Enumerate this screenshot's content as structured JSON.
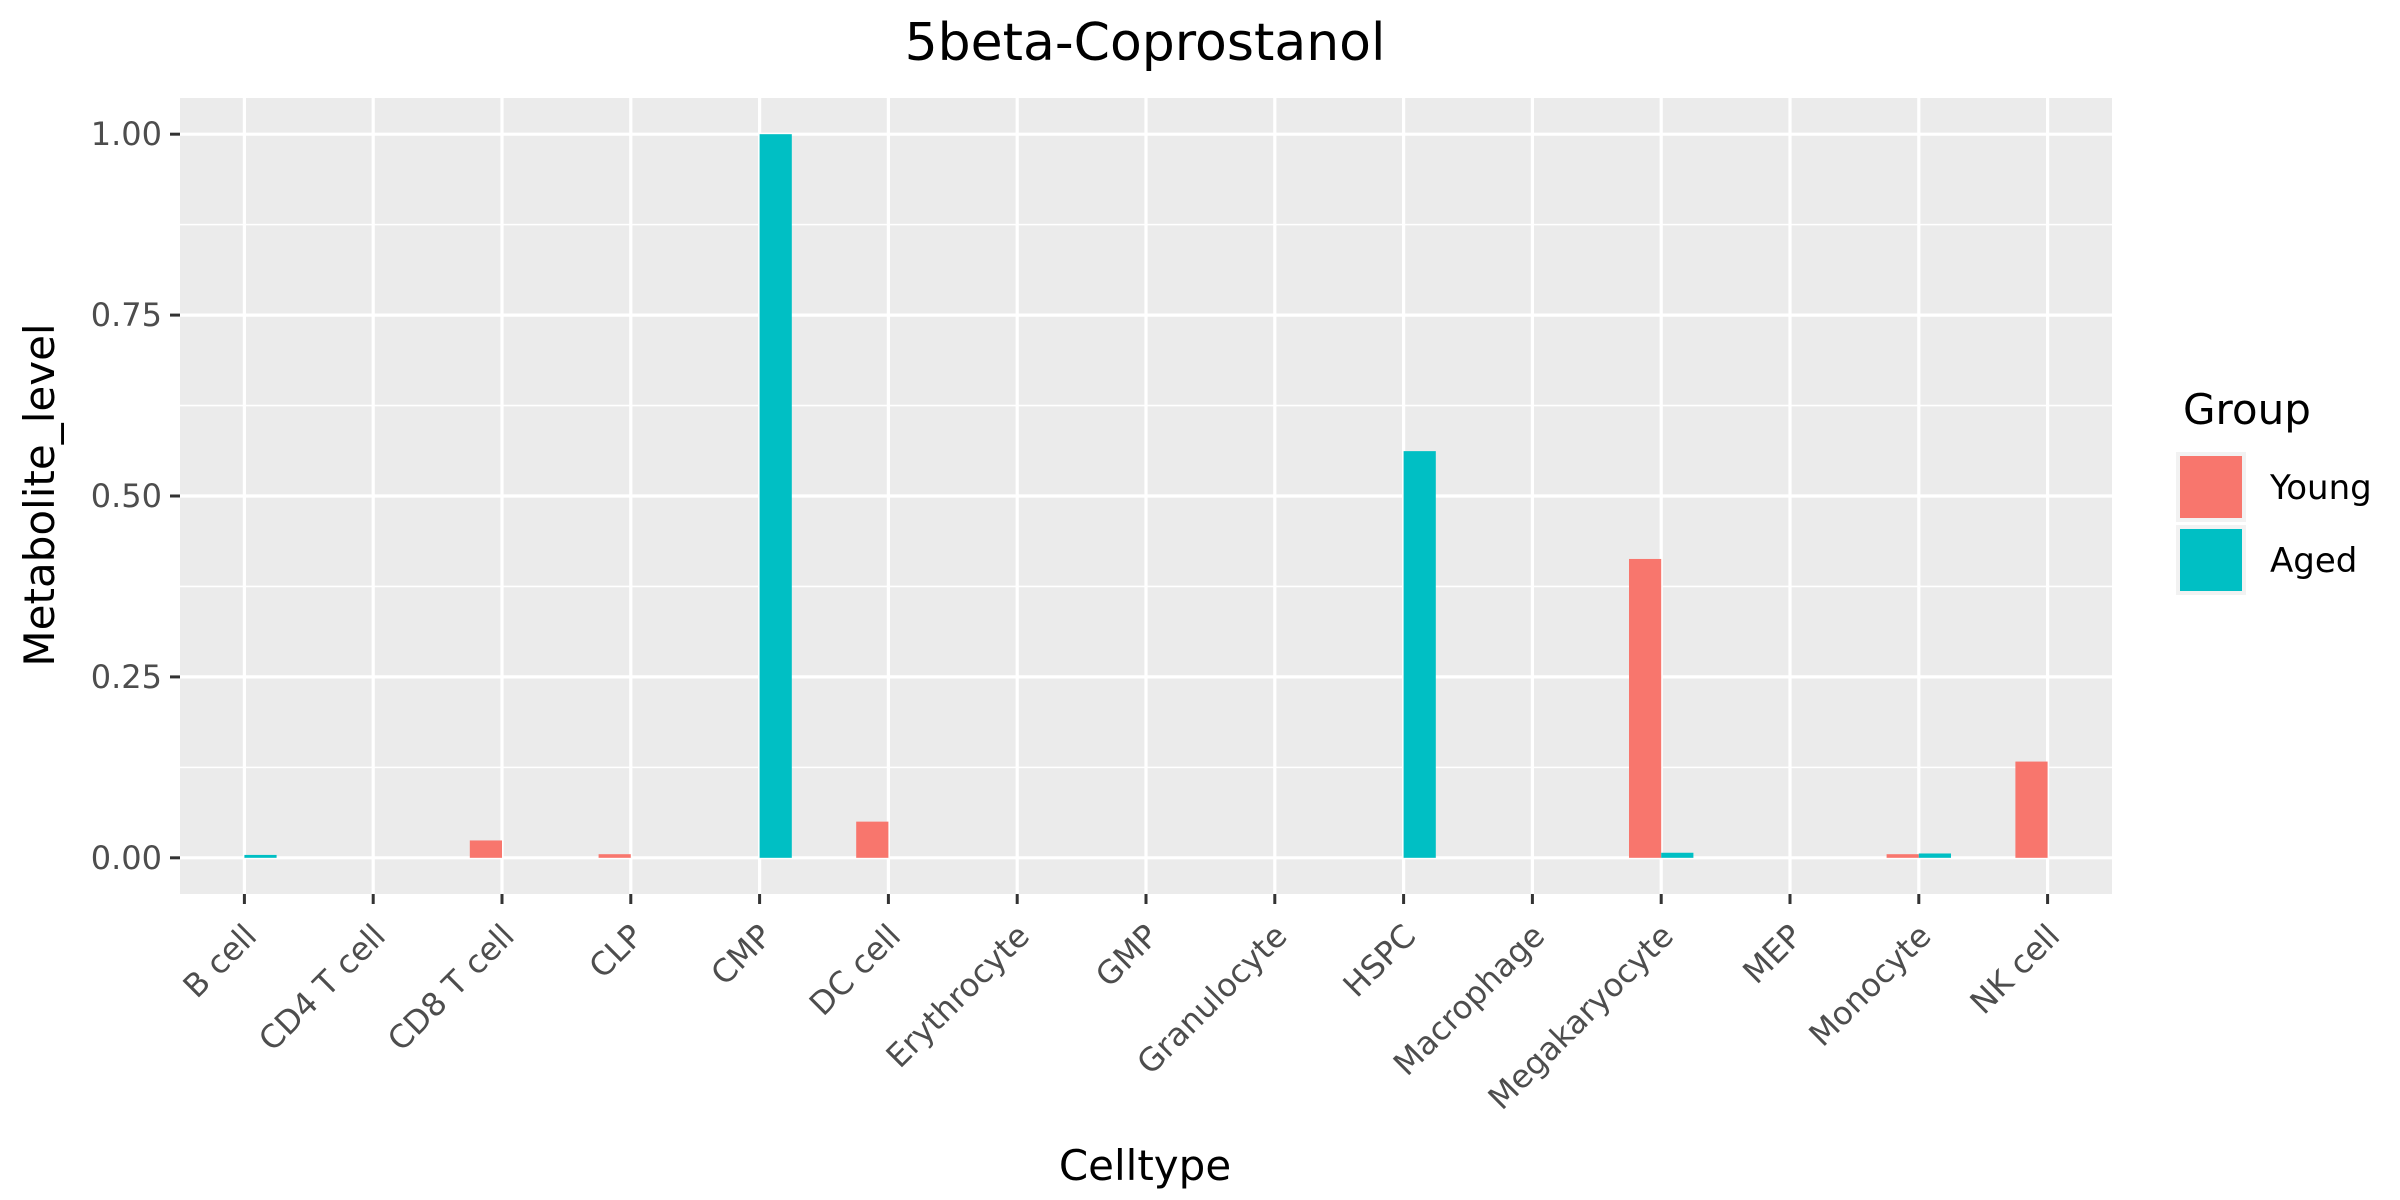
{
  "chart_data": {
    "type": "bar",
    "title": "5beta-Coprostanol",
    "xlabel": "Celltype",
    "ylabel": "Metabolite_level",
    "ylim": [
      -0.05,
      1.05
    ],
    "yticks": [
      "0.00",
      "0.25",
      "0.50",
      "0.75",
      "1.00"
    ],
    "grid": true,
    "legend_position": "right",
    "legend_title": "Group",
    "categories": [
      "B cell",
      "CD4 T cell",
      "CD8 T cell",
      "CLP",
      "CMP",
      "DC cell",
      "Erythrocyte",
      "GMP",
      "Granulocyte",
      "HSPC",
      "Macrophage",
      "Megakaryocyte",
      "MEP",
      "Monocyte",
      "NK cell"
    ],
    "series": [
      {
        "name": "Young",
        "color": "#F8766D",
        "values": [
          0,
          0,
          0.024,
          0.005,
          0,
          0.05,
          0,
          0,
          0,
          0,
          0,
          0.413,
          0,
          0.005,
          0.133
        ]
      },
      {
        "name": "Aged",
        "color": "#00BFC4",
        "values": [
          0.004,
          0,
          0,
          0,
          1.0,
          0,
          0,
          0,
          0,
          0.562,
          0,
          0.007,
          0,
          0.006,
          0
        ]
      }
    ],
    "colors": {
      "panel_background": "#EBEBEB",
      "grid": "#FFFFFF",
      "tick": "#333333"
    }
  }
}
